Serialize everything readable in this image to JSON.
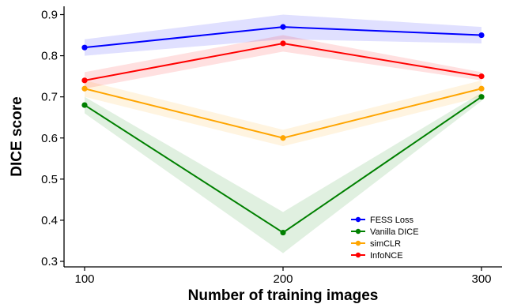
{
  "chart_data": {
    "type": "line",
    "title": "",
    "xlabel": "Number of training images",
    "ylabel": "DICE score",
    "x": [
      100,
      200,
      300
    ],
    "x_ticks": [
      "100",
      "200",
      "300"
    ],
    "y_ticks": [
      "0.3",
      "0.4",
      "0.5",
      "0.6",
      "0.7",
      "0.8",
      "0.9"
    ],
    "xlim": [
      100,
      300
    ],
    "ylim": [
      0.3,
      0.92
    ],
    "grid": false,
    "legend_position": "bottom-right",
    "series": [
      {
        "name": "FESS Loss",
        "color": "#0000ff",
        "values": [
          0.82,
          0.87,
          0.85
        ],
        "band_lower": [
          0.8,
          0.84,
          0.83
        ],
        "band_upper": [
          0.84,
          0.9,
          0.87
        ]
      },
      {
        "name": "Vanilla DICE",
        "color": "#008000",
        "values": [
          0.68,
          0.37,
          0.7
        ],
        "band_lower": [
          0.66,
          0.32,
          0.69
        ],
        "band_upper": [
          0.7,
          0.42,
          0.71
        ]
      },
      {
        "name": "simCLR",
        "color": "#ffa500",
        "values": [
          0.72,
          0.6,
          0.72
        ],
        "band_lower": [
          0.7,
          0.58,
          0.7
        ],
        "band_upper": [
          0.74,
          0.62,
          0.74
        ]
      },
      {
        "name": "InfoNCE",
        "color": "#ff0000",
        "values": [
          0.74,
          0.83,
          0.75
        ],
        "band_lower": [
          0.72,
          0.81,
          0.74
        ],
        "band_upper": [
          0.76,
          0.85,
          0.76
        ]
      }
    ]
  }
}
